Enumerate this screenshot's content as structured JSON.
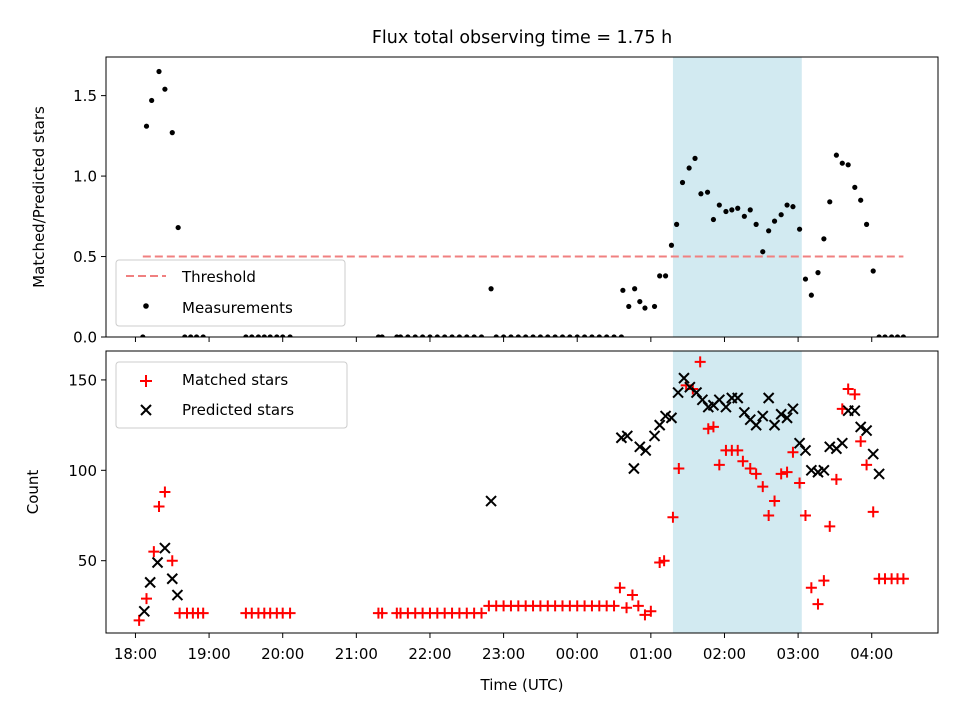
{
  "title": "Flux total observing time = 1.75 h",
  "shaded_region": {
    "x_start": 25.3,
    "x_end": 27.05,
    "color": "#add8e6"
  },
  "x_axis": {
    "label": "Time (UTC)",
    "range": [
      17.6,
      28.9
    ],
    "ticks": [
      18,
      19,
      20,
      21,
      22,
      23,
      24,
      25,
      26,
      27,
      28
    ],
    "tick_labels": [
      "18:00",
      "19:00",
      "20:00",
      "21:00",
      "22:00",
      "23:00",
      "00:00",
      "01:00",
      "02:00",
      "03:00",
      "04:00"
    ]
  },
  "chart_data": [
    {
      "type": "scatter",
      "ylabel": "Matched/Predicted stars",
      "ylim": [
        0,
        1.74
      ],
      "yticks": [
        0.0,
        0.5,
        1.0,
        1.5
      ],
      "ytick_labels": [
        "0.0",
        "0.5",
        "1.0",
        "1.5"
      ],
      "legend": {
        "position": "lower-left",
        "threshold_label": "Threshold",
        "measurements_label": "Measurements"
      },
      "threshold": {
        "value": 0.5,
        "x_range": [
          18.1,
          28.43
        ],
        "color": "#f08080"
      },
      "measurements": {
        "color": "#000000",
        "x": [
          18.1,
          18.15,
          18.22,
          18.32,
          18.4,
          18.5,
          18.58,
          18.67,
          18.75,
          18.83,
          18.92,
          19.5,
          19.58,
          19.67,
          19.75,
          19.83,
          19.92,
          20.0,
          20.1,
          21.3,
          21.35,
          21.55,
          21.6,
          21.7,
          21.8,
          21.9,
          22.0,
          22.1,
          22.2,
          22.3,
          22.4,
          22.5,
          22.6,
          22.7,
          22.83,
          22.9,
          23.0,
          23.1,
          23.2,
          23.3,
          23.4,
          23.5,
          23.6,
          23.7,
          23.8,
          23.9,
          24.0,
          24.1,
          24.2,
          24.3,
          24.4,
          24.5,
          24.6,
          24.62,
          24.7,
          24.78,
          24.85,
          24.92,
          25.05,
          25.12,
          25.2,
          25.28,
          25.35,
          25.43,
          25.52,
          25.6,
          25.68,
          25.77,
          25.85,
          25.93,
          26.02,
          26.1,
          26.18,
          26.27,
          26.35,
          26.43,
          26.52,
          26.6,
          26.68,
          26.77,
          26.85,
          26.93,
          27.02,
          27.1,
          27.18,
          27.27,
          27.35,
          27.43,
          27.52,
          27.6,
          27.68,
          27.77,
          27.85,
          27.93,
          28.02,
          28.1,
          28.18,
          28.27,
          28.35,
          28.43
        ],
        "y": [
          0.0,
          1.31,
          1.47,
          1.65,
          1.54,
          1.27,
          0.68,
          0.0,
          0.0,
          0.0,
          0.0,
          0.0,
          0.0,
          0.0,
          0.0,
          0.0,
          0.0,
          0.0,
          0.0,
          0.0,
          0.0,
          0.0,
          0.0,
          0.0,
          0.0,
          0.0,
          0.0,
          0.0,
          0.0,
          0.0,
          0.0,
          0.0,
          0.0,
          0.0,
          0.3,
          0.0,
          0.0,
          0.0,
          0.0,
          0.0,
          0.0,
          0.0,
          0.0,
          0.0,
          0.0,
          0.0,
          0.0,
          0.0,
          0.0,
          0.0,
          0.0,
          0.0,
          0.0,
          0.29,
          0.19,
          0.3,
          0.22,
          0.18,
          0.19,
          0.38,
          0.38,
          0.57,
          0.7,
          0.96,
          1.05,
          1.11,
          0.89,
          0.9,
          0.73,
          0.82,
          0.78,
          0.79,
          0.8,
          0.75,
          0.79,
          0.7,
          0.53,
          0.66,
          0.72,
          0.76,
          0.82,
          0.81,
          0.67,
          0.36,
          0.26,
          0.4,
          0.61,
          0.84,
          1.13,
          1.08,
          1.07,
          0.93,
          0.85,
          0.7,
          0.41,
          0.0,
          0.0,
          0.0,
          0.0,
          0.0
        ]
      }
    },
    {
      "type": "scatter",
      "ylabel": "Count",
      "ylim": [
        10,
        166
      ],
      "yticks": [
        50,
        100,
        150
      ],
      "ytick_labels": [
        "50",
        "100",
        "150"
      ],
      "legend": {
        "position": "upper-left",
        "matched_label": "Matched stars",
        "predicted_label": "Predicted stars"
      },
      "series": [
        {
          "name": "Matched stars",
          "marker": "plus",
          "color": "#ff0000",
          "x": [
            18.05,
            18.15,
            18.25,
            18.32,
            18.4,
            18.5,
            18.6,
            18.7,
            18.78,
            18.85,
            18.92,
            19.5,
            19.58,
            19.67,
            19.75,
            19.83,
            19.92,
            20.0,
            20.1,
            21.3,
            21.35,
            21.55,
            21.6,
            21.7,
            21.8,
            21.9,
            22.0,
            22.1,
            22.2,
            22.3,
            22.4,
            22.5,
            22.6,
            22.7,
            22.8,
            22.9,
            23.0,
            23.1,
            23.2,
            23.3,
            23.4,
            23.5,
            23.6,
            23.7,
            23.8,
            23.9,
            24.0,
            24.1,
            24.2,
            24.3,
            24.4,
            24.5,
            24.58,
            24.67,
            24.75,
            24.83,
            24.92,
            25.0,
            25.12,
            25.18,
            25.3,
            25.38,
            25.48,
            25.57,
            25.67,
            25.78,
            25.85,
            25.93,
            26.02,
            26.1,
            26.18,
            26.25,
            26.35,
            26.43,
            26.52,
            26.6,
            26.68,
            26.77,
            26.85,
            26.93,
            27.02,
            27.1,
            27.18,
            27.27,
            27.35,
            27.43,
            27.52,
            27.6,
            27.68,
            27.77,
            27.85,
            27.93,
            28.02,
            28.1,
            28.18,
            28.27,
            28.35,
            28.43
          ],
          "y": [
            17,
            29,
            55,
            80,
            88,
            50,
            21,
            21,
            21,
            21,
            21,
            21,
            21,
            21,
            21,
            21,
            21,
            21,
            21,
            21,
            21,
            21,
            21,
            21,
            21,
            21,
            21,
            21,
            21,
            21,
            21,
            21,
            21,
            21,
            25,
            25,
            25,
            25,
            25,
            25,
            25,
            25,
            25,
            25,
            25,
            25,
            25,
            25,
            25,
            25,
            25,
            25,
            35,
            24,
            31,
            25,
            20,
            22,
            49,
            50,
            74,
            101,
            147,
            145,
            160,
            123,
            124,
            103,
            111,
            111,
            111,
            105,
            101,
            98,
            91,
            75,
            83,
            98,
            99,
            110,
            93,
            75,
            35,
            26,
            39,
            69,
            95,
            134,
            145,
            142,
            116,
            103,
            77,
            40,
            40,
            40,
            40,
            40
          ]
        },
        {
          "name": "Predicted stars",
          "marker": "x",
          "color": "#000000",
          "x": [
            18.12,
            18.2,
            18.3,
            18.4,
            18.5,
            18.57,
            22.83,
            24.6,
            24.68,
            24.77,
            24.85,
            24.93,
            25.05,
            25.12,
            25.2,
            25.28,
            25.37,
            25.45,
            25.53,
            25.62,
            25.7,
            25.78,
            25.85,
            25.93,
            26.02,
            26.1,
            26.18,
            26.27,
            26.35,
            26.43,
            26.52,
            26.6,
            26.68,
            26.77,
            26.85,
            26.93,
            27.02,
            27.1,
            27.18,
            27.27,
            27.35,
            27.43,
            27.52,
            27.6,
            27.68,
            27.77,
            27.85,
            27.93,
            28.02,
            28.1
          ],
          "y": [
            22,
            38,
            49,
            57,
            40,
            31,
            83,
            118,
            119,
            101,
            113,
            111,
            119,
            125,
            130,
            129,
            143,
            151,
            146,
            143,
            139,
            135,
            136,
            139,
            135,
            140,
            140,
            132,
            128,
            125,
            130,
            140,
            125,
            131,
            129,
            134,
            115,
            111,
            100,
            99,
            100,
            113,
            112,
            115,
            133,
            133,
            124,
            122,
            109,
            98
          ]
        }
      ]
    }
  ]
}
